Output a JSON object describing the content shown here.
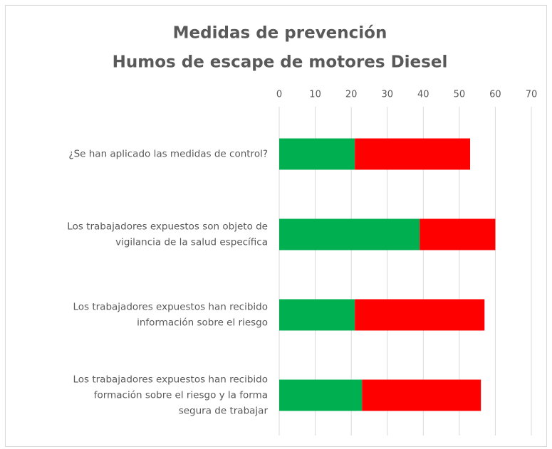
{
  "chart_data": {
    "type": "bar",
    "orientation": "horizontal",
    "stacked": true,
    "title": [
      "Medidas de prevención",
      "Humos de escape de motores Diesel"
    ],
    "categories": [
      [
        "¿Se han aplicado las medidas de control?"
      ],
      [
        "Los trabajadores expuestos son objeto de",
        "vigilancia de la salud específica"
      ],
      [
        "Los trabajadores expuestos han recibido",
        "información sobre el riesgo"
      ],
      [
        "Los trabajadores expuestos han recibido",
        "formación sobre el riesgo y la forma",
        "segura de trabajar"
      ]
    ],
    "series": [
      {
        "color": "#00b050",
        "values": [
          21,
          39,
          21,
          23
        ]
      },
      {
        "color": "#ff0000",
        "values": [
          32,
          21,
          36,
          33
        ]
      }
    ],
    "xlim": [
      0,
      70
    ],
    "xticks": [
      0,
      10,
      20,
      30,
      40,
      50,
      60,
      70
    ],
    "grid": true
  }
}
